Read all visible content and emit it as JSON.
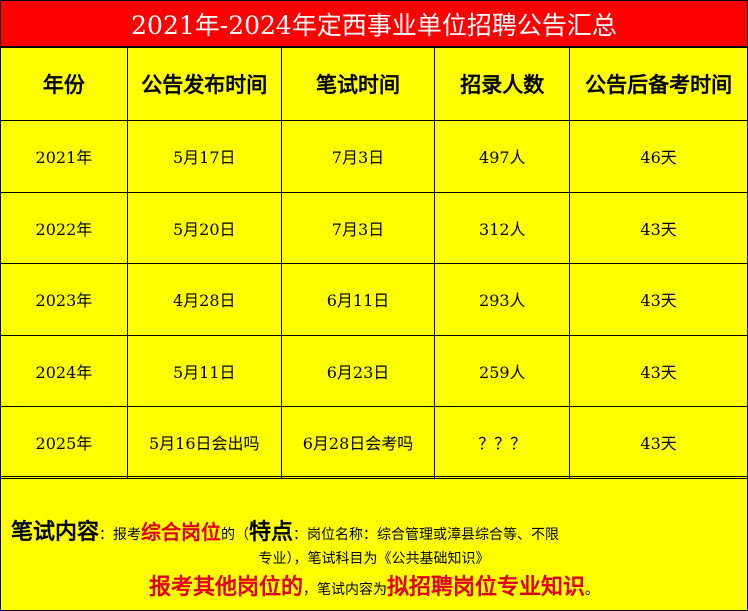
{
  "title": "2021年-2024年定西事业单位招聘公告汇总",
  "headers": [
    "年份",
    "公告发布时间",
    "笔试时间",
    "招录人数",
    "公告后备考时间"
  ],
  "rows": [
    [
      "2021年",
      "5月17日",
      "7月3日",
      "497人",
      "46天"
    ],
    [
      "2022年",
      "5月20日",
      "7月3日",
      "312人",
      "43天"
    ],
    [
      "2023年",
      "4月28日",
      "6月11日",
      "293人",
      "43天"
    ],
    [
      "2024年",
      "5月11日",
      "6月23日",
      "259人",
      "43天"
    ],
    [
      "2025年",
      "5月16日会出吗",
      "6月28日会考吗",
      "？？？",
      "43天"
    ]
  ],
  "notes": {
    "label": "笔试内容",
    "colon": "：",
    "t1": "报考",
    "h1": "综合岗位",
    "t2": "的（",
    "feature": "特点",
    "t3": "：岗位名称：综合管理或漳县综合等、不限",
    "t4": "专业），笔试科目为《公共基础知识》",
    "h2": "报考其他岗位的",
    "t5": "，笔试内容为",
    "h3": "拟招聘岗位专业知识",
    "t6": "。"
  },
  "colors": {
    "title_bg": "#ff0000",
    "body_bg": "#ffff00",
    "highlight": "#e0001a"
  }
}
